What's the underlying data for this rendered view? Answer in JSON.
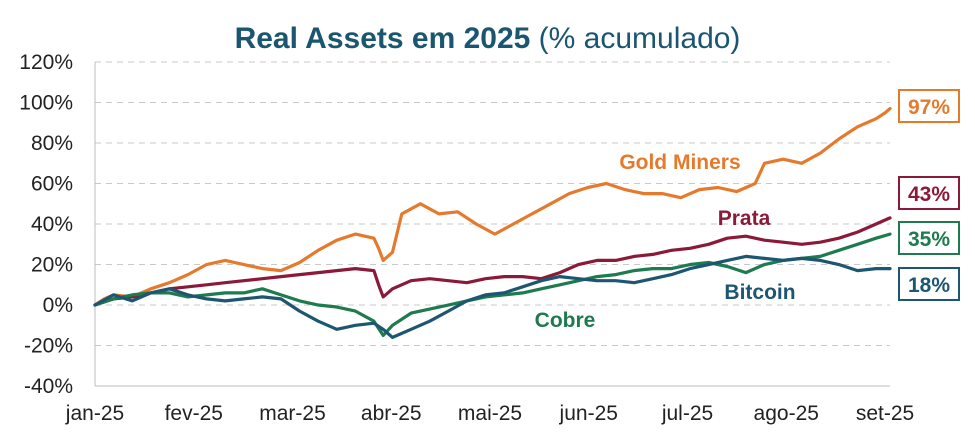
{
  "title": {
    "main": "Real Assets em 2025",
    "sub": "(% acumulado)"
  },
  "chart_data": {
    "type": "line",
    "title": "Real Assets em 2025 (% acumulado)",
    "ylim": [
      -40,
      120
    ],
    "yticks": [
      -40,
      -20,
      0,
      20,
      40,
      60,
      80,
      100,
      120
    ],
    "ytick_labels": [
      "-40%",
      "-20%",
      "0%",
      "20%",
      "40%",
      "60%",
      "80%",
      "100%",
      "120%"
    ],
    "x_labels": [
      "jan-25",
      "fev-25",
      "mar-25",
      "abr-25",
      "mai-25",
      "jun-25",
      "jul-25",
      "ago-25",
      "set-25"
    ],
    "grid": "horizontal dashed",
    "series": [
      {
        "name": "Gold Miners",
        "color": "#e57a2c",
        "end_label": "97%",
        "points": [
          [
            0,
            0
          ],
          [
            0.1,
            3
          ],
          [
            0.2,
            5
          ],
          [
            0.4,
            4
          ],
          [
            0.6,
            8
          ],
          [
            0.8,
            11
          ],
          [
            1.0,
            15
          ],
          [
            1.2,
            20
          ],
          [
            1.4,
            22
          ],
          [
            1.6,
            20
          ],
          [
            1.8,
            18
          ],
          [
            2.0,
            17
          ],
          [
            2.2,
            21
          ],
          [
            2.4,
            27
          ],
          [
            2.6,
            32
          ],
          [
            2.8,
            35
          ],
          [
            3.0,
            33
          ],
          [
            3.05,
            28
          ],
          [
            3.1,
            22
          ],
          [
            3.2,
            26
          ],
          [
            3.3,
            45
          ],
          [
            3.5,
            50
          ],
          [
            3.7,
            45
          ],
          [
            3.9,
            46
          ],
          [
            4.1,
            40
          ],
          [
            4.3,
            35
          ],
          [
            4.5,
            40
          ],
          [
            4.7,
            45
          ],
          [
            4.9,
            50
          ],
          [
            5.1,
            55
          ],
          [
            5.3,
            58
          ],
          [
            5.5,
            60
          ],
          [
            5.7,
            57
          ],
          [
            5.9,
            55
          ],
          [
            6.1,
            55
          ],
          [
            6.3,
            53
          ],
          [
            6.5,
            57
          ],
          [
            6.7,
            58
          ],
          [
            6.9,
            56
          ],
          [
            7.1,
            60
          ],
          [
            7.2,
            70
          ],
          [
            7.4,
            72
          ],
          [
            7.6,
            70
          ],
          [
            7.8,
            75
          ],
          [
            8.0,
            82
          ],
          [
            8.2,
            88
          ],
          [
            8.4,
            92
          ],
          [
            8.5,
            95
          ],
          [
            8.55,
            97
          ]
        ]
      },
      {
        "name": "Prata",
        "color": "#8b1a3a",
        "end_label": "43%",
        "points": [
          [
            0,
            0
          ],
          [
            0.2,
            3
          ],
          [
            0.4,
            4
          ],
          [
            0.6,
            6
          ],
          [
            0.8,
            8
          ],
          [
            1.0,
            9
          ],
          [
            1.2,
            10
          ],
          [
            1.4,
            11
          ],
          [
            1.6,
            12
          ],
          [
            1.8,
            13
          ],
          [
            2.0,
            14
          ],
          [
            2.2,
            15
          ],
          [
            2.4,
            16
          ],
          [
            2.6,
            17
          ],
          [
            2.8,
            18
          ],
          [
            3.0,
            17
          ],
          [
            3.05,
            10
          ],
          [
            3.1,
            4
          ],
          [
            3.2,
            8
          ],
          [
            3.4,
            12
          ],
          [
            3.6,
            13
          ],
          [
            3.8,
            12
          ],
          [
            4.0,
            11
          ],
          [
            4.2,
            13
          ],
          [
            4.4,
            14
          ],
          [
            4.6,
            14
          ],
          [
            4.8,
            13
          ],
          [
            5.0,
            16
          ],
          [
            5.2,
            20
          ],
          [
            5.4,
            22
          ],
          [
            5.6,
            22
          ],
          [
            5.8,
            24
          ],
          [
            6.0,
            25
          ],
          [
            6.2,
            27
          ],
          [
            6.4,
            28
          ],
          [
            6.6,
            30
          ],
          [
            6.8,
            33
          ],
          [
            7.0,
            34
          ],
          [
            7.2,
            32
          ],
          [
            7.4,
            31
          ],
          [
            7.6,
            30
          ],
          [
            7.8,
            31
          ],
          [
            8.0,
            33
          ],
          [
            8.2,
            36
          ],
          [
            8.4,
            40
          ],
          [
            8.55,
            43
          ]
        ]
      },
      {
        "name": "Cobre",
        "color": "#1e7a4f",
        "end_label": "35%",
        "points": [
          [
            0,
            0
          ],
          [
            0.2,
            3
          ],
          [
            0.4,
            5
          ],
          [
            0.6,
            6
          ],
          [
            0.8,
            6
          ],
          [
            1.0,
            4
          ],
          [
            1.2,
            5
          ],
          [
            1.4,
            6
          ],
          [
            1.6,
            6
          ],
          [
            1.8,
            8
          ],
          [
            2.0,
            5
          ],
          [
            2.2,
            2
          ],
          [
            2.4,
            0
          ],
          [
            2.6,
            -1
          ],
          [
            2.8,
            -3
          ],
          [
            3.0,
            -8
          ],
          [
            3.1,
            -15
          ],
          [
            3.2,
            -10
          ],
          [
            3.4,
            -4
          ],
          [
            3.6,
            -2
          ],
          [
            3.8,
            0
          ],
          [
            4.0,
            2
          ],
          [
            4.2,
            4
          ],
          [
            4.4,
            5
          ],
          [
            4.6,
            6
          ],
          [
            4.8,
            8
          ],
          [
            5.0,
            10
          ],
          [
            5.2,
            12
          ],
          [
            5.4,
            14
          ],
          [
            5.6,
            15
          ],
          [
            5.8,
            17
          ],
          [
            6.0,
            18
          ],
          [
            6.2,
            18
          ],
          [
            6.4,
            20
          ],
          [
            6.6,
            21
          ],
          [
            6.8,
            19
          ],
          [
            7.0,
            16
          ],
          [
            7.2,
            20
          ],
          [
            7.4,
            22
          ],
          [
            7.6,
            23
          ],
          [
            7.8,
            24
          ],
          [
            8.0,
            27
          ],
          [
            8.2,
            30
          ],
          [
            8.4,
            33
          ],
          [
            8.55,
            35
          ]
        ]
      },
      {
        "name": "Bitcoin",
        "color": "#1d5670",
        "end_label": "18%",
        "points": [
          [
            0,
            0
          ],
          [
            0.2,
            5
          ],
          [
            0.4,
            2
          ],
          [
            0.6,
            6
          ],
          [
            0.8,
            8
          ],
          [
            1.0,
            5
          ],
          [
            1.2,
            3
          ],
          [
            1.4,
            2
          ],
          [
            1.6,
            3
          ],
          [
            1.8,
            4
          ],
          [
            2.0,
            3
          ],
          [
            2.2,
            -3
          ],
          [
            2.4,
            -8
          ],
          [
            2.6,
            -12
          ],
          [
            2.8,
            -10
          ],
          [
            3.0,
            -9
          ],
          [
            3.1,
            -12
          ],
          [
            3.2,
            -16
          ],
          [
            3.4,
            -12
          ],
          [
            3.6,
            -8
          ],
          [
            3.8,
            -3
          ],
          [
            4.0,
            2
          ],
          [
            4.2,
            5
          ],
          [
            4.4,
            6
          ],
          [
            4.6,
            9
          ],
          [
            4.8,
            12
          ],
          [
            5.0,
            14
          ],
          [
            5.2,
            13
          ],
          [
            5.4,
            12
          ],
          [
            5.6,
            12
          ],
          [
            5.8,
            11
          ],
          [
            6.0,
            13
          ],
          [
            6.2,
            15
          ],
          [
            6.4,
            18
          ],
          [
            6.6,
            20
          ],
          [
            6.8,
            22
          ],
          [
            7.0,
            24
          ],
          [
            7.2,
            23
          ],
          [
            7.4,
            22
          ],
          [
            7.6,
            23
          ],
          [
            7.8,
            22
          ],
          [
            8.0,
            20
          ],
          [
            8.2,
            17
          ],
          [
            8.4,
            18
          ],
          [
            8.55,
            18
          ]
        ]
      }
    ]
  }
}
